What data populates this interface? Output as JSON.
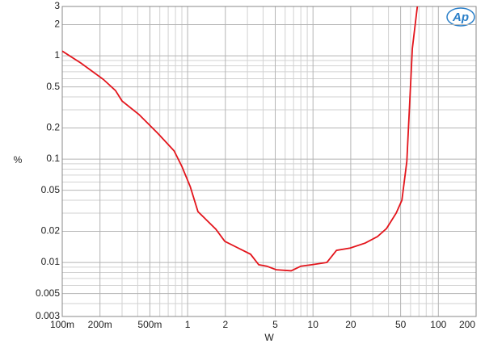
{
  "chart_data": {
    "type": "line",
    "x_label": "W",
    "y_label": "%",
    "logo": "Ap",
    "xscale": "log",
    "yscale": "log",
    "grid": true,
    "xlim": [
      0.1,
      200
    ],
    "ylim": [
      0.003,
      3
    ],
    "xticks": [
      {
        "value": 0.1,
        "label": "100m"
      },
      {
        "value": 0.2,
        "label": "200m"
      },
      {
        "value": 0.5,
        "label": "500m"
      },
      1,
      2,
      5,
      10,
      20,
      50,
      100,
      200
    ],
    "yticks": [
      0.003,
      0.005,
      0.01,
      0.02,
      0.05,
      0.1,
      0.2,
      0.5,
      1,
      2,
      3
    ],
    "x_minor_ticks": [
      0.3,
      0.4,
      0.6,
      0.7,
      0.8,
      0.9,
      3,
      4,
      6,
      7,
      8,
      9,
      30,
      40,
      60,
      70,
      80,
      90
    ],
    "y_minor_ticks": [
      0.004,
      0.006,
      0.007,
      0.008,
      0.009,
      0.03,
      0.04,
      0.06,
      0.07,
      0.08,
      0.09,
      0.3,
      0.4,
      0.6,
      0.7,
      0.8,
      0.9
    ],
    "series": [
      {
        "color": "#e3141b",
        "x": [
          0.1,
          0.141,
          0.213,
          0.266,
          0.3,
          0.41,
          0.577,
          0.78,
          0.9,
          1.05,
          1.21,
          1.45,
          1.68,
          1.98,
          2.44,
          3.18,
          3.69,
          4.28,
          5.1,
          6.7,
          8.0,
          9.8,
          12.9,
          15.4,
          19.8,
          26.1,
          32.7,
          38.6,
          46.1,
          51.2,
          56,
          62,
          68
        ],
        "values": [
          1.11,
          0.85,
          0.59,
          0.46,
          0.365,
          0.27,
          0.178,
          0.12,
          0.085,
          0.054,
          0.031,
          0.025,
          0.021,
          0.016,
          0.0141,
          0.012,
          0.0095,
          0.0092,
          0.0085,
          0.0083,
          0.0092,
          0.0095,
          0.01,
          0.0131,
          0.0138,
          0.0154,
          0.0178,
          0.0213,
          0.03,
          0.04,
          0.095,
          1.17,
          3.0
        ]
      }
    ]
  }
}
